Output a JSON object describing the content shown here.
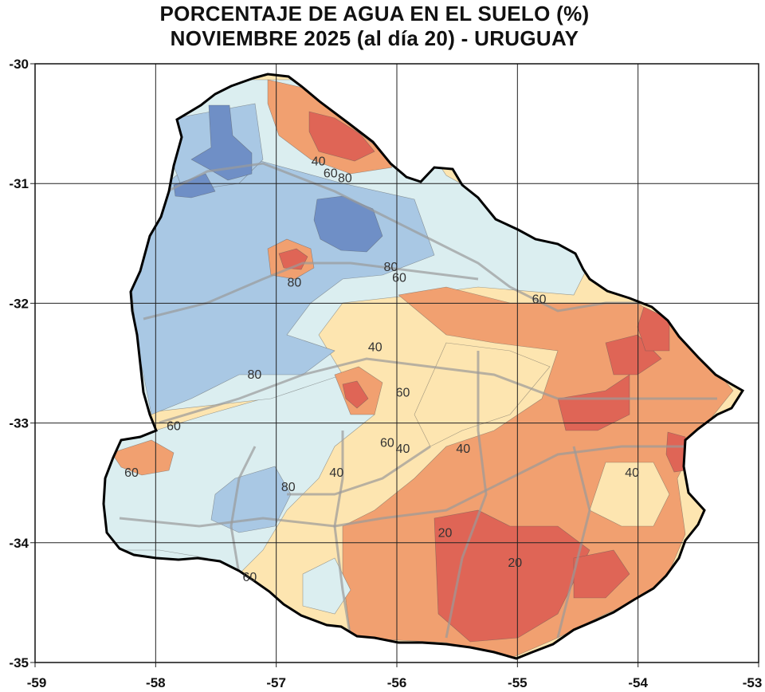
{
  "title_line1": "PORCENTAJE DE AGUA EN EL SUELO (%)",
  "title_line2": "NOVIEMBRE 2025 (al día 20) - URUGUAY",
  "x_ticks": [
    "-59",
    "-58",
    "-57",
    "-56",
    "-55",
    "-54",
    "-53"
  ],
  "y_ticks": [
    "-30",
    "-31",
    "-32",
    "-33",
    "-34",
    "-35"
  ],
  "lon_range": [
    -59,
    -53
  ],
  "lat_range": [
    -35,
    -30
  ],
  "contour_labels": [
    {
      "text": "40",
      "lon": -56.65,
      "lat": -30.85
    },
    {
      "text": "60",
      "lon": -56.55,
      "lat": -30.95
    },
    {
      "text": "80",
      "lon": -56.43,
      "lat": -30.99
    },
    {
      "text": "80",
      "lon": -56.85,
      "lat": -31.86
    },
    {
      "text": "80",
      "lon": -56.05,
      "lat": -31.73
    },
    {
      "text": "60",
      "lon": -55.98,
      "lat": -31.82
    },
    {
      "text": "60",
      "lon": -54.82,
      "lat": -32.0
    },
    {
      "text": "40",
      "lon": -56.18,
      "lat": -32.4
    },
    {
      "text": "80",
      "lon": -57.18,
      "lat": -32.63
    },
    {
      "text": "60",
      "lon": -55.95,
      "lat": -32.78
    },
    {
      "text": "60",
      "lon": -57.85,
      "lat": -33.06
    },
    {
      "text": "60",
      "lon": -58.2,
      "lat": -33.45
    },
    {
      "text": "60",
      "lon": -56.08,
      "lat": -33.2
    },
    {
      "text": "40",
      "lon": -55.95,
      "lat": -33.25
    },
    {
      "text": "40",
      "lon": -55.45,
      "lat": -33.25
    },
    {
      "text": "40",
      "lon": -56.5,
      "lat": -33.45
    },
    {
      "text": "80",
      "lon": -56.9,
      "lat": -33.57
    },
    {
      "text": "40",
      "lon": -54.05,
      "lat": -33.45
    },
    {
      "text": "20",
      "lon": -55.6,
      "lat": -33.95
    },
    {
      "text": "20",
      "lon": -55.02,
      "lat": -34.2
    },
    {
      "text": "60",
      "lon": -57.22,
      "lat": -34.32
    }
  ],
  "colors": {
    "darkblue": "#6f8fc6",
    "blue": "#a9c8e4",
    "lightblue": "#dbeef0",
    "yellow": "#fde5b0",
    "orange": "#f1a070",
    "red": "#df6556",
    "border": "#000000",
    "grid": "#222222",
    "roads": "#9a9a9a"
  },
  "legend_levels": [
    20,
    40,
    60,
    80
  ]
}
